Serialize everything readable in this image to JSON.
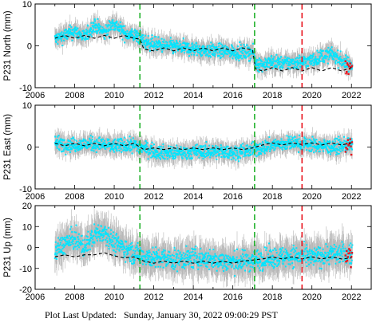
{
  "footer": {
    "label": "Plot Last Updated:",
    "timestamp": "Sunday, January 30, 2022 09:00:29 PST"
  },
  "colors": {
    "error_bars": "#b8b8b8",
    "data": "#00e5ff",
    "model": "#000000",
    "event_green": "#22b22c",
    "event_red": "#e8141e",
    "recent": "#e8141e"
  },
  "chart_data": [
    {
      "type": "scatter",
      "ylabel": "P231 North (mm)",
      "xlim": [
        2006,
        2023
      ],
      "ylim": [
        -10,
        10
      ],
      "xticks": [
        2006,
        2008,
        2010,
        2012,
        2014,
        2016,
        2018,
        2020,
        2022
      ],
      "yticks": [
        -10,
        0,
        10
      ],
      "grid": false,
      "vlines": [
        {
          "x": 2011.3,
          "color": "green",
          "style": "dashed"
        },
        {
          "x": 2017.1,
          "color": "green",
          "style": "dashed"
        },
        {
          "x": 2019.5,
          "color": "red",
          "style": "dashed"
        }
      ],
      "series": [
        {
          "x": [
            2007.0,
            2007.5,
            2008.0,
            2008.5,
            2009.0,
            2009.5,
            2010.0,
            2010.5,
            2011.0,
            2011.3,
            2011.5,
            2012.0,
            2012.5,
            2013.0,
            2013.5,
            2014.0,
            2014.5,
            2015.0,
            2015.5,
            2016.0,
            2016.5,
            2017.0,
            2017.15,
            2017.5,
            2018.0,
            2018.5,
            2019.0,
            2019.5,
            2020.0,
            2020.5,
            2021.0,
            2021.5,
            2022.0
          ],
          "y": [
            1.5,
            2.5,
            3.5,
            2.0,
            5.0,
            3.0,
            5.5,
            3.0,
            2.5,
            2.0,
            1.0,
            0.5,
            0.0,
            -0.2,
            -0.5,
            -0.8,
            -1.0,
            -1.2,
            -1.3,
            -1.5,
            -1.6,
            -1.5,
            -4.0,
            -4.5,
            -3.8,
            -4.2,
            -4.0,
            -3.8,
            -3.5,
            -2.5,
            -2.0,
            -3.5,
            -5.0
          ]
        },
        {
          "x": [
            2007.0,
            2007.5,
            2008.0,
            2008.5,
            2009.0,
            2009.5,
            2010.0,
            2010.5,
            2011.0,
            2011.3,
            2011.5,
            2012.0,
            2012.5,
            2013.0,
            2013.5,
            2014.0,
            2014.5,
            2015.0,
            2015.5,
            2016.0,
            2016.5,
            2017.0,
            2017.15,
            2017.5,
            2018.0,
            2018.5,
            2019.0,
            2019.5,
            2020.0,
            2020.5,
            2021.0,
            2021.5,
            2022.0
          ],
          "y": [
            1.8,
            2.5,
            1.8,
            2.5,
            1.8,
            2.5,
            1.8,
            2.5,
            1.8,
            1.6,
            -0.8,
            -1.2,
            -0.5,
            -1.2,
            -0.5,
            -1.2,
            -0.5,
            -1.2,
            -0.5,
            -1.2,
            -0.5,
            -1.0,
            -5.5,
            -6.0,
            -5.2,
            -6.0,
            -5.2,
            -6.0,
            -5.2,
            -6.0,
            -5.2,
            -6.0,
            -5.2
          ]
        }
      ]
    },
    {
      "type": "scatter",
      "ylabel": "P231 East (mm)",
      "xlim": [
        2006,
        2023
      ],
      "ylim": [
        -10,
        10
      ],
      "xticks": [
        2006,
        2008,
        2010,
        2012,
        2014,
        2016,
        2018,
        2020,
        2022
      ],
      "yticks": [
        -10,
        0,
        10
      ],
      "grid": false,
      "vlines": [
        {
          "x": 2011.3,
          "color": "green",
          "style": "dashed"
        },
        {
          "x": 2017.1,
          "color": "green",
          "style": "dashed"
        },
        {
          "x": 2019.5,
          "color": "red",
          "style": "dashed"
        }
      ],
      "series": [
        {
          "x": [
            2007.0,
            2008.0,
            2009.0,
            2010.0,
            2011.0,
            2012.0,
            2013.0,
            2014.0,
            2015.0,
            2016.0,
            2017.0,
            2018.0,
            2019.0,
            2020.0,
            2021.0,
            2022.0
          ],
          "y": [
            1.0,
            0.5,
            0.8,
            0.2,
            0.5,
            -1.0,
            -1.5,
            -1.2,
            -1.0,
            -1.3,
            -0.8,
            0.5,
            1.0,
            0.5,
            0.0,
            0.5
          ]
        },
        {
          "x": [
            2007.0,
            2007.5,
            2008.0,
            2008.5,
            2009.0,
            2009.5,
            2010.0,
            2010.5,
            2011.0,
            2011.5,
            2012.0,
            2012.5,
            2013.0,
            2013.5,
            2014.0,
            2014.5,
            2015.0,
            2015.5,
            2016.0,
            2016.5,
            2017.0,
            2017.5,
            2018.0,
            2018.5,
            2019.0,
            2019.5,
            2020.0,
            2020.5,
            2021.0,
            2021.5,
            2022.0
          ],
          "y": [
            0.9,
            0.3,
            0.9,
            0.3,
            0.9,
            0.3,
            0.9,
            0.3,
            0.9,
            -0.6,
            -0.2,
            -0.6,
            -0.2,
            -0.6,
            -0.2,
            -0.6,
            -0.2,
            -0.6,
            -0.2,
            -0.6,
            -0.2,
            0.5,
            1.0,
            0.5,
            1.0,
            0.6,
            1.0,
            0.5,
            1.0,
            0.5,
            1.0
          ]
        }
      ]
    },
    {
      "type": "scatter",
      "ylabel": "P231 Up (mm)",
      "xlim": [
        2006,
        2023
      ],
      "ylim": [
        -20,
        20
      ],
      "xticks": [
        2006,
        2008,
        2010,
        2012,
        2014,
        2016,
        2018,
        2020,
        2022
      ],
      "yticks": [
        -20,
        -10,
        0,
        10,
        20
      ],
      "grid": false,
      "vlines": [
        {
          "x": 2011.3,
          "color": "green",
          "style": "dashed"
        },
        {
          "x": 2017.1,
          "color": "green",
          "style": "dashed"
        },
        {
          "x": 2019.5,
          "color": "red",
          "style": "dashed"
        }
      ],
      "series": [
        {
          "x": [
            2007.0,
            2007.5,
            2008.0,
            2008.5,
            2009.0,
            2009.5,
            2010.0,
            2010.5,
            2011.0,
            2012.0,
            2013.0,
            2014.0,
            2015.0,
            2016.0,
            2017.0,
            2018.0,
            2019.0,
            2020.0,
            2021.0,
            2022.0
          ],
          "y": [
            -2,
            2,
            4,
            0,
            6,
            8,
            2,
            0,
            -3,
            -5,
            -6,
            -5,
            -6,
            -7,
            -6,
            -5,
            -4,
            -5,
            -3,
            -3
          ]
        },
        {
          "x": [
            2007.0,
            2007.5,
            2008.0,
            2008.5,
            2009.0,
            2009.5,
            2010.0,
            2010.5,
            2011.0,
            2011.5,
            2012.0,
            2012.5,
            2013.0,
            2013.5,
            2014.0,
            2014.5,
            2015.0,
            2015.5,
            2016.0,
            2016.5,
            2017.0,
            2017.5,
            2018.0,
            2018.5,
            2019.0,
            2019.5,
            2020.0,
            2020.5,
            2021.0,
            2021.5,
            2022.0
          ],
          "y": [
            -4.5,
            -3.5,
            -4.5,
            -3.5,
            -3.5,
            -2.5,
            -4.0,
            -5.0,
            -4.5,
            -6.5,
            -7.5,
            -6.5,
            -7.5,
            -6.5,
            -7.5,
            -6.5,
            -7.5,
            -6.5,
            -7.5,
            -6.5,
            -6.0,
            -5.5,
            -4.5,
            -5.5,
            -4.5,
            -5.5,
            -4.5,
            -5.5,
            -4.5,
            -5.5,
            -5.0
          ]
        }
      ]
    }
  ]
}
